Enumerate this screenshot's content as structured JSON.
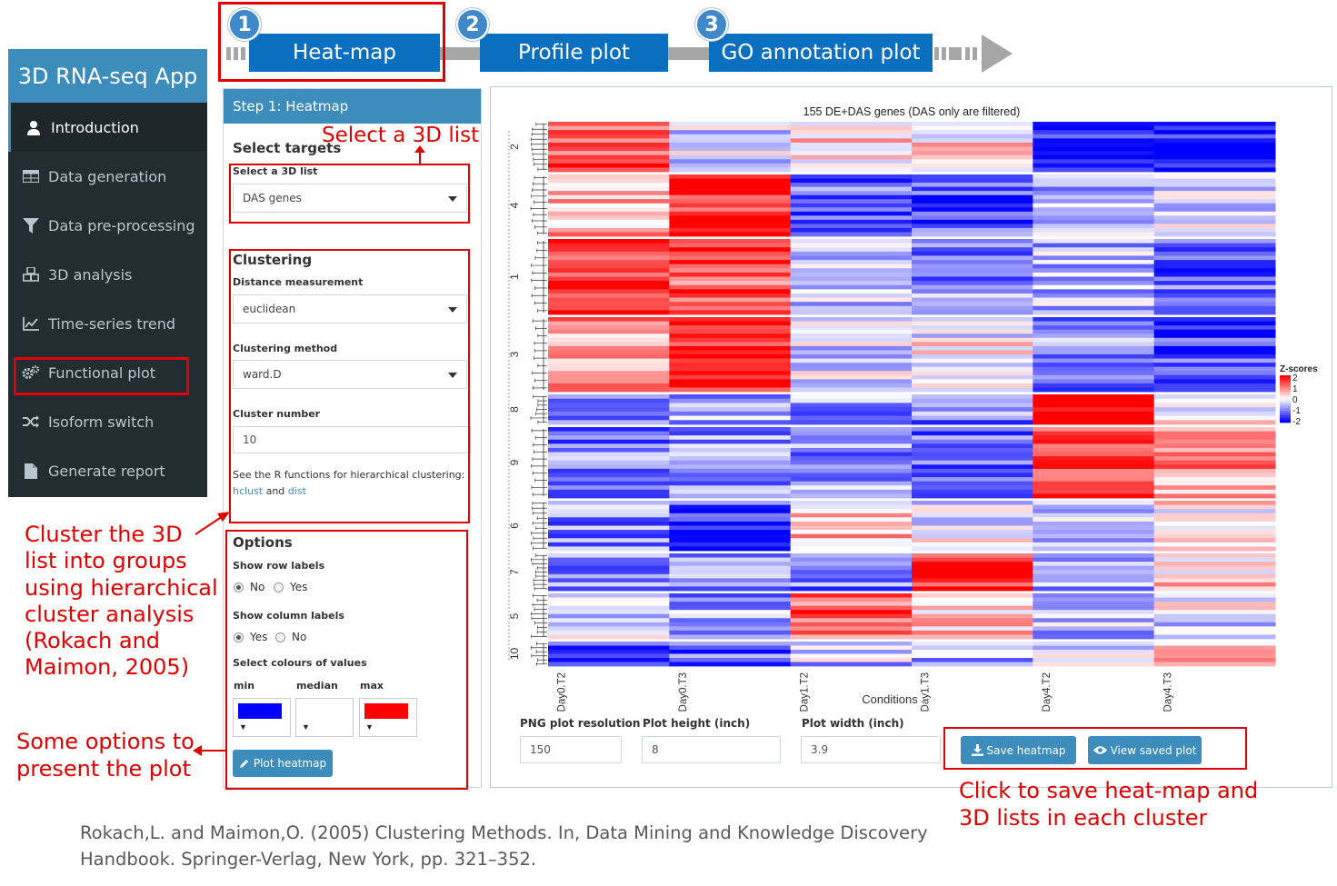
{
  "workflow": {
    "steps": [
      {
        "num": "1",
        "label": "Heat-map"
      },
      {
        "num": "2",
        "label": "Profile plot"
      },
      {
        "num": "3",
        "label": "GO annotation plot"
      }
    ]
  },
  "sidebar": {
    "title": "3D RNA-seq App",
    "items": [
      {
        "label": "Introduction",
        "icon": "user-icon"
      },
      {
        "label": "Data generation",
        "icon": "table-icon"
      },
      {
        "label": "Data pre-processing",
        "icon": "filter-icon"
      },
      {
        "label": "3D analysis",
        "icon": "cubes-icon"
      },
      {
        "label": "Time-series trend",
        "icon": "line-chart-icon"
      },
      {
        "label": "Functional plot",
        "icon": "gears-icon"
      },
      {
        "label": "Isoform switch",
        "icon": "random-icon"
      },
      {
        "label": "Generate report",
        "icon": "file-icon"
      }
    ]
  },
  "panel": {
    "header": "Step 1: Heatmap",
    "select_targets": "Select targets",
    "list_label": "Select a 3D list",
    "list_value": "DAS genes",
    "clustering_title": "Clustering",
    "distance_label": "Distance measurement",
    "distance_value": "euclidean",
    "method_label": "Clustering method",
    "method_value": "ward.D",
    "cluster_number_label": "Cluster number",
    "cluster_number_value": "10",
    "see_text": "See the R functions for hierarchical clustering:",
    "hclust_link": "hclust",
    "and_text": "and",
    "dist_link": "dist",
    "options_title": "Options",
    "row_labels_label": "Show row labels",
    "row_opt_no": "No",
    "row_opt_yes": "Yes",
    "col_labels_label": "Show column labels",
    "col_opt_yes": "Yes",
    "col_opt_no": "No",
    "colours_label": "Select colours of values",
    "min_label": "min",
    "median_label": "median",
    "max_label": "max",
    "min_color": "#0000ff",
    "median_color": "#ffffff",
    "max_color": "#ff0000",
    "plot_button": "Plot heatmap"
  },
  "plot": {
    "title": "155 DE+DAS genes (DAS only are filtered)",
    "xlabel": "Conditions",
    "columns": [
      "Day0.T2",
      "Day0.T3",
      "Day1.T2",
      "Day1.T3",
      "Day4.T2",
      "Day4.T3"
    ],
    "cluster_labels": [
      "2",
      "4",
      "1",
      "3",
      "8",
      "9",
      "6",
      "7",
      "5",
      "10"
    ],
    "legend_title": "Z-scores",
    "legend_ticks": [
      "2",
      "1",
      "0",
      "-1",
      "-2"
    ],
    "resolution_label": "PNG plot resolution",
    "resolution_value": "150",
    "height_label": "Plot height (inch)",
    "height_value": "8",
    "width_label": "Plot width (inch)",
    "width_value": "3.9",
    "save_button": "Save heatmap",
    "view_button": "View saved plot"
  },
  "annotations": {
    "select_3d": "Select a 3D list",
    "cluster_note": [
      "Cluster the 3D",
      "list into groups",
      "using hierarchical",
      "cluster analysis",
      "(Rokach and",
      "Maimon, 2005)"
    ],
    "options_note": [
      "Some options to",
      "present the plot"
    ],
    "save_note": [
      "Click to save heat-map and",
      "3D lists in each cluster"
    ]
  },
  "reference": [
    "Rokach,L. and Maimon,O. (2005) Clustering Methods. In, Data Mining and Knowledge Discovery",
    "Handbook. Springer-Verlag, New York, pp. 321–352."
  ]
}
